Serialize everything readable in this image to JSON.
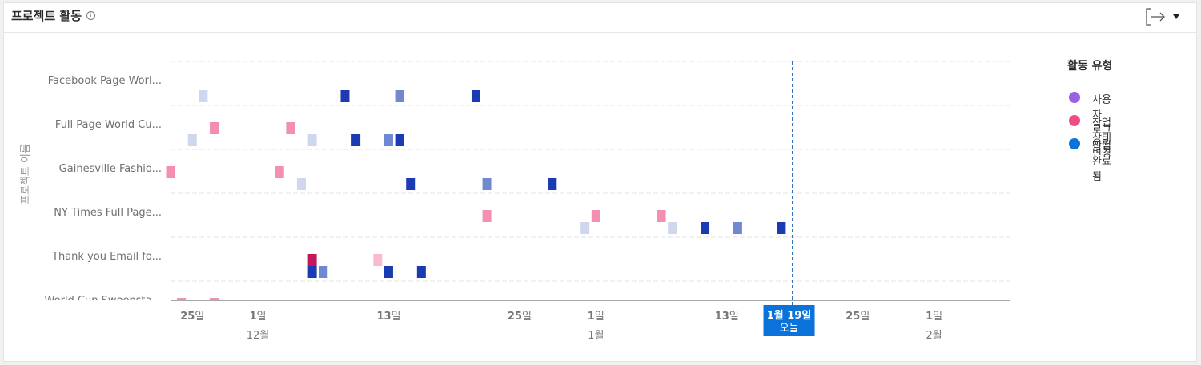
{
  "header": {
    "title": "프로젝트 활동",
    "info_symbol": "i"
  },
  "legend": {
    "title": "활동 유형",
    "items": [
      {
        "label": "사용자 로그인됨",
        "color": "#9b5fe0"
      },
      {
        "label": "작업 상태 변경",
        "color": "#ef4b85"
      },
      {
        "label": "작업 완료됨",
        "color": "#0b72d9"
      }
    ]
  },
  "chart_data": {
    "type": "scatter",
    "ylabel": "프로젝트 이름",
    "x_axis": {
      "start": "2023-11-23",
      "end": "2024-02-08",
      "ticks": [
        {
          "date": "2023-11-25",
          "day": "25",
          "suffix": "일",
          "month": ""
        },
        {
          "date": "2023-12-01",
          "day": "1",
          "suffix": "일",
          "month": "12월"
        },
        {
          "date": "2023-12-13",
          "day": "13",
          "suffix": "일",
          "month": ""
        },
        {
          "date": "2023-12-25",
          "day": "25",
          "suffix": "일",
          "month": ""
        },
        {
          "date": "2024-01-01",
          "day": "1",
          "suffix": "일",
          "month": "1월"
        },
        {
          "date": "2024-01-13",
          "day": "13",
          "suffix": "일",
          "month": ""
        },
        {
          "date": "2024-01-25",
          "day": "25",
          "suffix": "일",
          "month": ""
        },
        {
          "date": "2024-02-01",
          "day": "1",
          "suffix": "일",
          "month": "2월"
        }
      ]
    },
    "today": {
      "date": "2024-01-19",
      "label_top_month": "1월",
      "label_top_day": "19일",
      "label_bottom": "오늘"
    },
    "categories": [
      "Facebook Page Worl...",
      "Full Page World Cu...",
      "Gainesville Fashio...",
      "NY Times Full Page...",
      "Thank you Email fo...",
      "World Cup Sweepsta..."
    ],
    "series": [
      {
        "name": "작업 상태 변경",
        "points": [
          {
            "row": 1,
            "date": "2023-11-27",
            "color": "#f48fb1"
          },
          {
            "row": 1,
            "date": "2023-12-04",
            "color": "#f48fb1"
          },
          {
            "row": 2,
            "date": "2023-11-23",
            "color": "#f48fb1"
          },
          {
            "row": 2,
            "date": "2023-12-03",
            "color": "#f48fb1"
          },
          {
            "row": 3,
            "date": "2023-12-22",
            "color": "#f48fb1"
          },
          {
            "row": 3,
            "date": "2024-01-01",
            "color": "#f48fb1"
          },
          {
            "row": 3,
            "date": "2024-01-07",
            "color": "#f48fb1"
          },
          {
            "row": 4,
            "date": "2023-12-06",
            "color": "#c2185b"
          },
          {
            "row": 4,
            "date": "2023-12-12",
            "color": "#f8bbd0"
          },
          {
            "row": 5,
            "date": "2023-11-24",
            "color": "#f48fb1"
          },
          {
            "row": 5,
            "date": "2023-11-27",
            "color": "#f48fb1"
          }
        ]
      },
      {
        "name": "작업 완료됨",
        "points": [
          {
            "row": 0,
            "date": "2023-11-26",
            "color": "#cfd7ee"
          },
          {
            "row": 0,
            "date": "2023-12-09",
            "color": "#1a3bb3"
          },
          {
            "row": 0,
            "date": "2023-12-14",
            "color": "#7088cf"
          },
          {
            "row": 0,
            "date": "2023-12-21",
            "color": "#1a3bb3"
          },
          {
            "row": 1,
            "date": "2023-11-25",
            "color": "#cfd7ee"
          },
          {
            "row": 1,
            "date": "2023-12-06",
            "color": "#cfd7ee"
          },
          {
            "row": 1,
            "date": "2023-12-10",
            "color": "#1a3bb3"
          },
          {
            "row": 1,
            "date": "2023-12-13",
            "color": "#7088cf"
          },
          {
            "row": 1,
            "date": "2023-12-14",
            "color": "#1a3bb3"
          },
          {
            "row": 2,
            "date": "2023-12-05",
            "color": "#cfd7ee"
          },
          {
            "row": 2,
            "date": "2023-12-15",
            "color": "#1a3bb3"
          },
          {
            "row": 2,
            "date": "2023-12-22",
            "color": "#7088cf"
          },
          {
            "row": 2,
            "date": "2023-12-28",
            "color": "#1a3bb3"
          },
          {
            "row": 3,
            "date": "2023-12-31",
            "color": "#cfd7ee"
          },
          {
            "row": 3,
            "date": "2024-01-08",
            "color": "#cfd7ee"
          },
          {
            "row": 3,
            "date": "2024-01-11",
            "color": "#1a3bb3"
          },
          {
            "row": 3,
            "date": "2024-01-14",
            "color": "#7088cf"
          },
          {
            "row": 3,
            "date": "2024-01-18",
            "color": "#1a3bb3"
          },
          {
            "row": 4,
            "date": "2023-12-06",
            "color": "#1a3bb3"
          },
          {
            "row": 4,
            "date": "2023-12-07",
            "color": "#7088cf"
          },
          {
            "row": 4,
            "date": "2023-12-13",
            "color": "#1a3bb3"
          },
          {
            "row": 4,
            "date": "2023-12-16",
            "color": "#1a3bb3"
          }
        ]
      }
    ]
  }
}
